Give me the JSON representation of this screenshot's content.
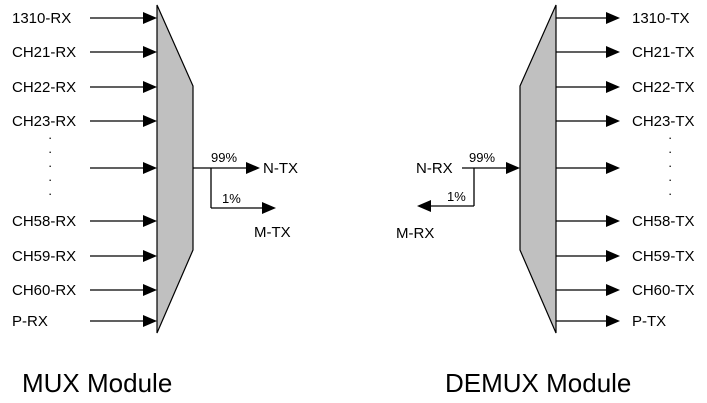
{
  "mux": {
    "title": "MUX  Module",
    "inputs": [
      "1310-RX",
      "CH21-RX",
      "CH22-RX",
      "CH23-RX",
      "",
      "CH58-RX",
      "CH59-RX",
      "CH60-RX",
      "P-RX"
    ],
    "out_main_pct": "99%",
    "out_main_label": "N-TX",
    "out_mon_pct": "1%",
    "out_mon_label": "M-TX"
  },
  "demux": {
    "title": "DEMUX  Module",
    "outputs": [
      "1310-TX",
      "CH21-TX",
      "CH22-TX",
      "CH23-TX",
      "",
      "CH58-TX",
      "CH59-TX",
      "CH60-TX",
      "P-TX"
    ],
    "in_main_label": "N-RX",
    "in_main_pct": "99%",
    "in_mon_pct": "1%",
    "in_mon_label": "M-RX"
  }
}
